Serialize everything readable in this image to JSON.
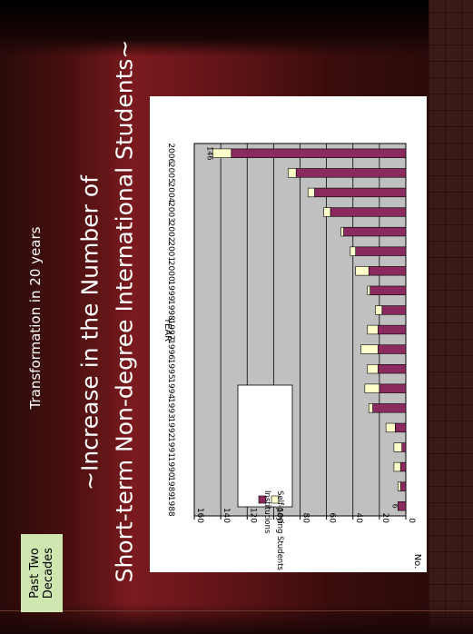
{
  "slide": {
    "badge": "Past Two\nDecades",
    "subtitle": "Transformation in 20 years",
    "title_line1": "~Increase in the Number of",
    "title_line2": "Short-term Non-degree International Students~"
  },
  "colors": {
    "institutions": "#8b2a5e",
    "self_paying": "#ffffcc",
    "plot_bg": "#c0c0c0"
  },
  "chart_data": {
    "type": "bar",
    "stacked": true,
    "orientation": "vertical",
    "categories": [
      "1988",
      "1989",
      "1990",
      "1991",
      "1992",
      "1993",
      "1994",
      "1995",
      "1996",
      "1997",
      "1998",
      "1999",
      "2000",
      "2001",
      "2002",
      "2003",
      "2004",
      "2005",
      "2006"
    ],
    "series": [
      {
        "name": "Institutions",
        "values": [
          6,
          4,
          4,
          3,
          8,
          25,
          20,
          21,
          21,
          21,
          18,
          27,
          28,
          38,
          47,
          57,
          69,
          83,
          132
        ]
      },
      {
        "name": "Self-paying Students",
        "values": [
          0,
          2,
          5,
          6,
          7,
          3,
          11,
          8,
          13,
          8,
          5,
          2,
          10,
          4,
          2,
          5,
          5,
          6,
          14
        ]
      }
    ],
    "data_labels": [
      {
        "category": "1988",
        "text": "6"
      },
      {
        "category": "2006",
        "text": "146"
      }
    ],
    "xlabel": "YEAR",
    "ylabel": "No.",
    "ylim": [
      0,
      160
    ],
    "yticks": [
      0,
      20,
      40,
      60,
      80,
      100,
      120,
      140,
      160
    ],
    "legend_position": "top-left",
    "grid": true
  }
}
